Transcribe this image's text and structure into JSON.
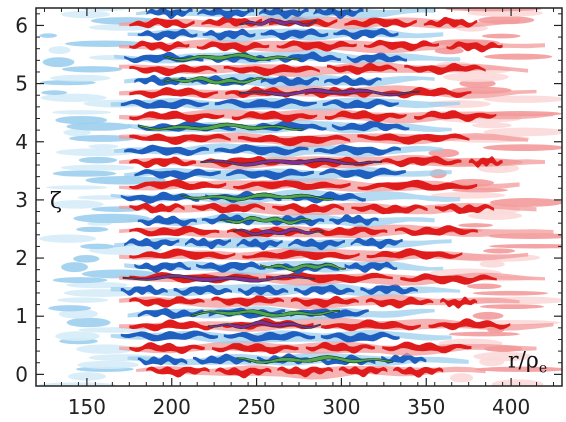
{
  "chart_data": {
    "type": "heatmap",
    "title": "",
    "xlabel": "r/ρ",
    "xlabel_subscript": "e",
    "ylabel": "ζ",
    "xlim": [
      120,
      430
    ],
    "ylim": [
      -0.2,
      6.3
    ],
    "x_ticks": [
      150,
      200,
      250,
      300,
      350,
      400
    ],
    "x_tick_labels": [
      "150",
      "200",
      "250",
      "300",
      "350",
      "400"
    ],
    "y_ticks": [
      0,
      1,
      2,
      3,
      4,
      5,
      6
    ],
    "y_tick_labels": [
      "0",
      "1",
      "2",
      "3",
      "4",
      "5",
      "6"
    ],
    "grid": false,
    "colors": {
      "strong_negative": "#1f5fbf",
      "weak_negative": "#9ccfee",
      "faint_negative": "#d6ecf8",
      "strong_positive": "#e01b1b",
      "weak_positive": "#f39a9a",
      "faint_positive": "#fbd9d9",
      "peak_positive": "#8a2a9a",
      "peak_negative": "#4fa84f"
    },
    "bands": [
      {
        "zeta": 0.05,
        "x_start": 185,
        "x_end": 360,
        "sign": 1,
        "peak": false
      },
      {
        "zeta": 0.25,
        "x_start": 180,
        "x_end": 350,
        "sign": -1,
        "peak": true
      },
      {
        "zeta": 0.45,
        "x_start": 175,
        "x_end": 390,
        "sign": 1,
        "peak": false
      },
      {
        "zeta": 0.65,
        "x_start": 170,
        "x_end": 340,
        "sign": -1,
        "peak": false
      },
      {
        "zeta": 0.85,
        "x_start": 175,
        "x_end": 400,
        "sign": 1,
        "peak": true
      },
      {
        "zeta": 1.05,
        "x_start": 180,
        "x_end": 330,
        "sign": -1,
        "peak": true
      },
      {
        "zeta": 1.25,
        "x_start": 175,
        "x_end": 380,
        "sign": 1,
        "peak": false
      },
      {
        "zeta": 1.45,
        "x_start": 170,
        "x_end": 345,
        "sign": -1,
        "peak": false
      },
      {
        "zeta": 1.65,
        "x_start": 175,
        "x_end": 395,
        "sign": 1,
        "peak": true
      },
      {
        "zeta": 1.85,
        "x_start": 178,
        "x_end": 335,
        "sign": -1,
        "peak": true
      },
      {
        "zeta": 2.05,
        "x_start": 175,
        "x_end": 385,
        "sign": 1,
        "peak": false
      },
      {
        "zeta": 2.25,
        "x_start": 172,
        "x_end": 340,
        "sign": -1,
        "peak": false
      },
      {
        "zeta": 2.45,
        "x_start": 175,
        "x_end": 400,
        "sign": 1,
        "peak": true
      },
      {
        "zeta": 2.65,
        "x_start": 180,
        "x_end": 330,
        "sign": -1,
        "peak": true
      },
      {
        "zeta": 2.85,
        "x_start": 175,
        "x_end": 390,
        "sign": 1,
        "peak": false
      },
      {
        "zeta": 3.05,
        "x_start": 170,
        "x_end": 345,
        "sign": -1,
        "peak": true
      },
      {
        "zeta": 3.25,
        "x_start": 175,
        "x_end": 380,
        "sign": 1,
        "peak": false
      },
      {
        "zeta": 3.45,
        "x_start": 178,
        "x_end": 340,
        "sign": -1,
        "peak": false
      },
      {
        "zeta": 3.65,
        "x_start": 175,
        "x_end": 395,
        "sign": 1,
        "peak": true
      },
      {
        "zeta": 3.85,
        "x_start": 172,
        "x_end": 335,
        "sign": -1,
        "peak": false
      },
      {
        "zeta": 4.05,
        "x_start": 175,
        "x_end": 385,
        "sign": 1,
        "peak": false
      },
      {
        "zeta": 4.25,
        "x_start": 180,
        "x_end": 340,
        "sign": -1,
        "peak": true
      },
      {
        "zeta": 4.45,
        "x_start": 175,
        "x_end": 400,
        "sign": 1,
        "peak": false
      },
      {
        "zeta": 4.65,
        "x_start": 170,
        "x_end": 345,
        "sign": -1,
        "peak": false
      },
      {
        "zeta": 4.85,
        "x_start": 175,
        "x_end": 390,
        "sign": 1,
        "peak": true
      },
      {
        "zeta": 5.05,
        "x_start": 178,
        "x_end": 330,
        "sign": -1,
        "peak": true
      },
      {
        "zeta": 5.25,
        "x_start": 175,
        "x_end": 385,
        "sign": 1,
        "peak": false
      },
      {
        "zeta": 5.45,
        "x_start": 172,
        "x_end": 345,
        "sign": -1,
        "peak": true
      },
      {
        "zeta": 5.65,
        "x_start": 175,
        "x_end": 395,
        "sign": 1,
        "peak": false
      },
      {
        "zeta": 5.85,
        "x_start": 180,
        "x_end": 335,
        "sign": -1,
        "peak": false
      },
      {
        "zeta": 6.05,
        "x_start": 175,
        "x_end": 380,
        "sign": 1,
        "peak": true
      },
      {
        "zeta": 6.22,
        "x_start": 185,
        "x_end": 330,
        "sign": -1,
        "peak": false
      }
    ],
    "left_fringe": {
      "x_start": 122,
      "x_end": 185,
      "sign": -1
    },
    "right_fringe": {
      "x_start": 350,
      "x_end": 428,
      "sign": 1
    }
  }
}
